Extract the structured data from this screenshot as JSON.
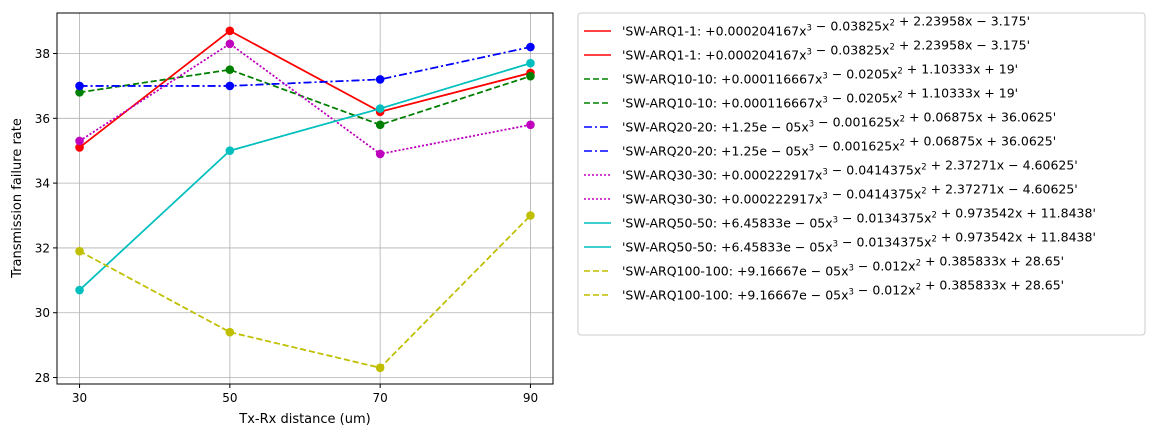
{
  "chart_data": {
    "type": "line",
    "xlabel": "Tx-Rx distance (um)",
    "ylabel": "Transmission failure rate",
    "x": [
      30,
      50,
      70,
      90
    ],
    "xticks": [
      "30",
      "50",
      "70",
      "90"
    ],
    "yticks": [
      "28",
      "30",
      "32",
      "34",
      "36",
      "38"
    ],
    "xlim": [
      27,
      93
    ],
    "ylim": [
      27.8,
      39.25
    ],
    "grid": true,
    "legend_position": "outside-right",
    "series": [
      {
        "name": "'SW-ARQ1-1: +0.000204167x³ − 0.03825x² + 2.23958x − 3.175'",
        "values": [
          35.1,
          38.7,
          36.2,
          37.4
        ],
        "color": "#ff0000",
        "linestyle": "solid",
        "markers": true
      },
      {
        "name": "'SW-ARQ1-1: +0.000204167x³ − 0.03825x² + 2.23958x − 3.175'",
        "values": [
          35.1,
          38.7,
          36.2,
          37.4
        ],
        "color": "#ff0000",
        "linestyle": "solid",
        "markers": false
      },
      {
        "name": "'SW-ARQ10-10: +0.000116667x³ − 0.0205x² + 1.10333x + 19'",
        "values": [
          36.8,
          37.5,
          35.8,
          37.3
        ],
        "color": "#008000",
        "linestyle": "dashed",
        "markers": true
      },
      {
        "name": "'SW-ARQ10-10: +0.000116667x³ − 0.0205x² + 1.10333x + 19'",
        "values": [
          36.8,
          37.5,
          35.8,
          37.3
        ],
        "color": "#008000",
        "linestyle": "dashed",
        "markers": false
      },
      {
        "name": "'SW-ARQ20-20: +1.25e − 05x³ − 0.001625x² + 0.06875x + 36.0625'",
        "values": [
          37.0,
          37.0,
          37.2,
          38.2
        ],
        "color": "#0000ff",
        "linestyle": "dashdot",
        "markers": true
      },
      {
        "name": "'SW-ARQ20-20: +1.25e − 05x³ − 0.001625x² + 0.06875x + 36.0625'",
        "values": [
          37.0,
          37.0,
          37.2,
          38.2
        ],
        "color": "#0000ff",
        "linestyle": "dashdot",
        "markers": false
      },
      {
        "name": "'SW-ARQ30-30: +0.000222917x³ − 0.0414375x² + 2.37271x − 4.60625'",
        "values": [
          35.3,
          38.3,
          34.9,
          35.8
        ],
        "color": "#bf00bf",
        "linestyle": "dotted",
        "markers": true
      },
      {
        "name": "'SW-ARQ30-30: +0.000222917x³ − 0.0414375x² + 2.37271x − 4.60625'",
        "values": [
          35.3,
          38.3,
          34.9,
          35.8
        ],
        "color": "#bf00bf",
        "linestyle": "dotted",
        "markers": false
      },
      {
        "name": "'SW-ARQ50-50: +6.45833e − 05x³ − 0.0134375x² + 0.973542x + 11.8438'",
        "values": [
          30.7,
          35.0,
          36.3,
          37.7
        ],
        "color": "#00bfbf",
        "linestyle": "solid",
        "markers": true
      },
      {
        "name": "'SW-ARQ50-50: +6.45833e − 05x³ − 0.0134375x² + 0.973542x + 11.8438'",
        "values": [
          30.7,
          35.0,
          36.3,
          37.7
        ],
        "color": "#00bfbf",
        "linestyle": "solid",
        "markers": false
      },
      {
        "name": "'SW-ARQ100-100: +9.16667e − 05x³ − 0.012x² + 0.385833x + 28.65'",
        "values": [
          31.9,
          29.4,
          28.3,
          33.0
        ],
        "color": "#bfbf00",
        "linestyle": "dashed",
        "markers": true
      },
      {
        "name": "'SW-ARQ100-100: +9.16667e − 05x³ − 0.012x² + 0.385833x + 28.65'",
        "values": [
          31.9,
          29.4,
          28.3,
          33.0
        ],
        "color": "#bfbf00",
        "linestyle": "dashed",
        "markers": false
      }
    ]
  }
}
